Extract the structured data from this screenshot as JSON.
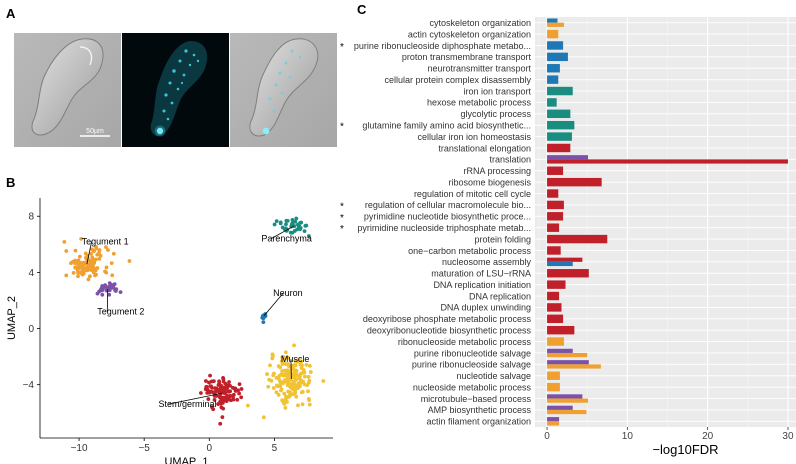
{
  "panels": {
    "a": "A",
    "b": "B",
    "c": "C"
  },
  "panel_a": {
    "scale_bar_label": "50µm"
  },
  "chart_data": [
    {
      "type": "scatter",
      "xlabel": "UMAP_1",
      "ylabel": "UMAP_2",
      "xlim": [
        -13,
        9.5
      ],
      "ylim": [
        -7.8,
        9.3
      ],
      "xticks": [
        -10,
        -5,
        0,
        5
      ],
      "yticks": [
        -4,
        0,
        4,
        8
      ],
      "tick_labels_x": [
        "−10",
        "−5",
        "0",
        "5"
      ],
      "tick_labels_y": [
        "−4",
        "0",
        "4",
        "8"
      ],
      "clusters": [
        {
          "name": "Tegument 1",
          "color": "#f0a030",
          "center": [
            -9.4,
            4.6
          ],
          "spread": [
            1.4,
            0.9
          ],
          "n": 110,
          "label_at": [
            -9.8,
            6.0
          ]
        },
        {
          "name": "Tegument 2",
          "color": "#7b52a8",
          "center": [
            -7.8,
            2.8
          ],
          "spread": [
            0.9,
            0.4
          ],
          "n": 32,
          "label_at": [
            -8.6,
            1.0
          ]
        },
        {
          "name": "Parenchyma",
          "color": "#1a8c80",
          "center": [
            6.5,
            7.3
          ],
          "spread": [
            1.1,
            0.5
          ],
          "n": 40,
          "label_at": [
            4.0,
            6.2
          ]
        },
        {
          "name": "Neuron",
          "color": "#1f78b4",
          "center": [
            4.2,
            0.9
          ],
          "spread": [
            0.12,
            0.3
          ],
          "n": 10,
          "label_at": [
            4.9,
            2.3
          ]
        },
        {
          "name": "Muscle",
          "color": "#f1c232",
          "center": [
            6.3,
            -3.6
          ],
          "spread": [
            1.3,
            1.3
          ],
          "n": 170,
          "label_at": [
            5.5,
            -2.4
          ]
        },
        {
          "name": "Stem/germinal",
          "color": "#c0202a",
          "center": [
            1.0,
            -4.6
          ],
          "spread": [
            1.2,
            0.9
          ],
          "n": 120,
          "label_at": [
            -3.9,
            -5.6
          ]
        }
      ]
    },
    {
      "type": "bar",
      "orientation": "horizontal",
      "xlabel": "−log10FDR",
      "xlim": [
        -1.5,
        31
      ],
      "xticks": [
        0,
        10,
        20,
        30
      ],
      "tick_labels_x": [
        "0",
        "10",
        "20",
        "30"
      ],
      "series_colors": {
        "parenchyma": "#1a8c80",
        "neuron": "#1f78b4",
        "stem": "#c0202a",
        "tegument1": "#f0a030",
        "tegument2": "#7b52a8"
      },
      "categories": [
        {
          "label": "cytoskeleton organization",
          "star": false,
          "bars": [
            {
              "s": "neuron",
              "v": 1.3
            },
            {
              "s": "tegument1",
              "v": 2.1
            }
          ]
        },
        {
          "label": "actin cytoskeleton organization",
          "star": false,
          "bars": [
            {
              "s": "tegument1",
              "v": 1.4
            }
          ]
        },
        {
          "label": "purine ribonucleoside diphosphate metabo...",
          "star": true,
          "bars": [
            {
              "s": "neuron",
              "v": 2.0
            }
          ]
        },
        {
          "label": "proton transmembrane transport",
          "star": false,
          "bars": [
            {
              "s": "neuron",
              "v": 2.6
            }
          ]
        },
        {
          "label": "neurotransmitter transport",
          "star": false,
          "bars": [
            {
              "s": "neuron",
              "v": 1.6
            }
          ]
        },
        {
          "label": "cellular protein complex disassembly",
          "star": false,
          "bars": [
            {
              "s": "neuron",
              "v": 1.4
            }
          ]
        },
        {
          "label": "iron ion transport",
          "star": false,
          "bars": [
            {
              "s": "parenchyma",
              "v": 3.2
            }
          ]
        },
        {
          "label": "hexose metabolic process",
          "star": false,
          "bars": [
            {
              "s": "parenchyma",
              "v": 1.2
            }
          ]
        },
        {
          "label": "glycolytic process",
          "star": false,
          "bars": [
            {
              "s": "parenchyma",
              "v": 2.9
            }
          ]
        },
        {
          "label": "glutamine family amino acid biosynthetic...",
          "star": true,
          "bars": [
            {
              "s": "parenchyma",
              "v": 3.4
            }
          ]
        },
        {
          "label": "cellular iron ion homeostasis",
          "star": false,
          "bars": [
            {
              "s": "parenchyma",
              "v": 3.1
            }
          ]
        },
        {
          "label": "translational elongation",
          "star": false,
          "bars": [
            {
              "s": "stem",
              "v": 2.9
            }
          ]
        },
        {
          "label": "translation",
          "star": false,
          "bars": [
            {
              "s": "tegument2",
              "v": 5.1
            },
            {
              "s": "stem",
              "v": 30
            }
          ]
        },
        {
          "label": "rRNA processing",
          "star": false,
          "bars": [
            {
              "s": "stem",
              "v": 2.0
            }
          ]
        },
        {
          "label": "ribosome biogenesis",
          "star": false,
          "bars": [
            {
              "s": "stem",
              "v": 6.8
            }
          ]
        },
        {
          "label": "regulation of mitotic cell cycle",
          "star": false,
          "bars": [
            {
              "s": "stem",
              "v": 1.4
            }
          ]
        },
        {
          "label": "regulation of cellular macromolecule bio...",
          "star": true,
          "bars": [
            {
              "s": "stem",
              "v": 2.1
            }
          ]
        },
        {
          "label": "pyrimidine nucleotide biosynthetic proce...",
          "star": true,
          "bars": [
            {
              "s": "stem",
              "v": 2.0
            }
          ]
        },
        {
          "label": "pyrimidine nucleoside triphosphate metab...",
          "star": true,
          "bars": [
            {
              "s": "stem",
              "v": 1.5
            }
          ]
        },
        {
          "label": "protein folding",
          "star": false,
          "bars": [
            {
              "s": "stem",
              "v": 7.5
            }
          ]
        },
        {
          "label": "one−carbon metabolic process",
          "star": false,
          "bars": [
            {
              "s": "stem",
              "v": 1.7
            }
          ]
        },
        {
          "label": "nucleosome assembly",
          "star": false,
          "bars": [
            {
              "s": "stem",
              "v": 4.4
            },
            {
              "s": "neuron",
              "v": 3.2
            }
          ]
        },
        {
          "label": "maturation of LSU−rRNA",
          "star": false,
          "bars": [
            {
              "s": "stem",
              "v": 5.2
            }
          ]
        },
        {
          "label": "DNA replication initiation",
          "star": false,
          "bars": [
            {
              "s": "stem",
              "v": 2.3
            }
          ]
        },
        {
          "label": "DNA replication",
          "star": false,
          "bars": [
            {
              "s": "stem",
              "v": 1.5
            }
          ]
        },
        {
          "label": "DNA duplex unwinding",
          "star": false,
          "bars": [
            {
              "s": "stem",
              "v": 1.8
            }
          ]
        },
        {
          "label": "deoxyribose phosphate metabolic process",
          "star": false,
          "bars": [
            {
              "s": "stem",
              "v": 2.0
            }
          ]
        },
        {
          "label": "deoxyribonucleotide biosynthetic process",
          "star": false,
          "bars": [
            {
              "s": "stem",
              "v": 3.4
            }
          ]
        },
        {
          "label": "ribonucleoside metabolic process",
          "star": false,
          "bars": [
            {
              "s": "tegument1",
              "v": 2.1
            }
          ]
        },
        {
          "label": "purine ribonucleotide salvage",
          "star": false,
          "bars": [
            {
              "s": "tegument2",
              "v": 3.2
            },
            {
              "s": "tegument1",
              "v": 5.0
            }
          ]
        },
        {
          "label": "purine ribonucleoside salvage",
          "star": false,
          "bars": [
            {
              "s": "tegument2",
              "v": 5.2
            },
            {
              "s": "tegument1",
              "v": 6.7
            }
          ]
        },
        {
          "label": "nucleotide salvage",
          "star": false,
          "bars": [
            {
              "s": "tegument1",
              "v": 1.6
            }
          ]
        },
        {
          "label": "nucleoside metabolic process",
          "star": false,
          "bars": [
            {
              "s": "tegument1",
              "v": 1.6
            }
          ]
        },
        {
          "label": "microtubule−based process",
          "star": false,
          "bars": [
            {
              "s": "tegument2",
              "v": 4.4
            },
            {
              "s": "tegument1",
              "v": 5.1
            }
          ]
        },
        {
          "label": "AMP biosynthetic process",
          "star": false,
          "bars": [
            {
              "s": "tegument2",
              "v": 3.2
            },
            {
              "s": "tegument1",
              "v": 4.9
            }
          ]
        },
        {
          "label": "actin filament organization",
          "star": false,
          "bars": [
            {
              "s": "tegument2",
              "v": 1.5
            },
            {
              "s": "tegument1",
              "v": 1.5
            }
          ]
        }
      ]
    }
  ]
}
